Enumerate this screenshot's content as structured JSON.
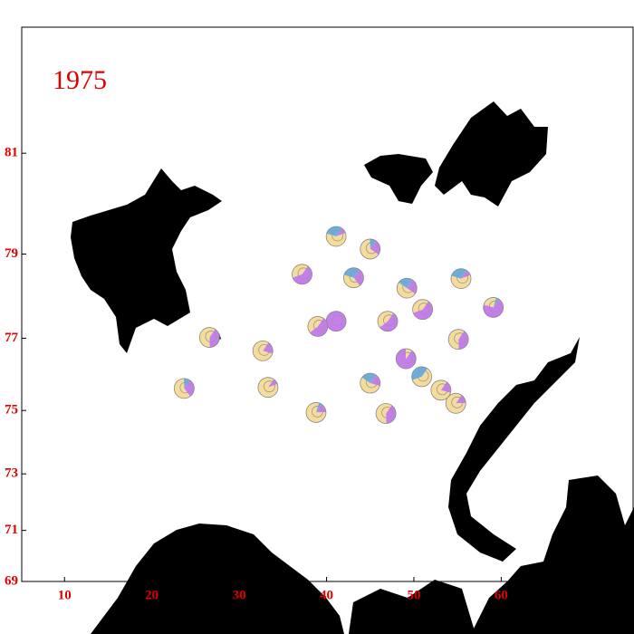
{
  "title": "1975",
  "xlim": [
    5.1,
    75.1
  ],
  "ylim": [
    69,
    83
  ],
  "xticks": [
    10,
    20,
    30,
    40,
    50,
    60
  ],
  "yticks": [
    69,
    71,
    73,
    75,
    77,
    79,
    81
  ],
  "colors": [
    "#c77cf0",
    "#f5dc9a",
    "#6aaee0"
  ],
  "pies": [
    {
      "lon": 41.1,
      "lat": 79.38,
      "values": [
        10,
        60,
        30
      ]
    },
    {
      "lon": 45.0,
      "lat": 79.11,
      "values": [
        25,
        65,
        10
      ]
    },
    {
      "lon": 37.2,
      "lat": 78.55,
      "values": [
        60,
        40,
        0
      ]
    },
    {
      "lon": 43.1,
      "lat": 78.47,
      "values": [
        30,
        40,
        30
      ]
    },
    {
      "lon": 49.2,
      "lat": 78.23,
      "values": [
        25,
        50,
        25
      ]
    },
    {
      "lon": 55.4,
      "lat": 78.45,
      "values": [
        10,
        60,
        30
      ]
    },
    {
      "lon": 59.1,
      "lat": 77.77,
      "values": [
        70,
        25,
        5
      ]
    },
    {
      "lon": 51.0,
      "lat": 77.72,
      "values": [
        60,
        40,
        0
      ]
    },
    {
      "lon": 41.1,
      "lat": 77.43,
      "values": [
        100,
        0,
        0
      ]
    },
    {
      "lon": 39.0,
      "lat": 77.3,
      "values": [
        55,
        45,
        0
      ]
    },
    {
      "lon": 47.0,
      "lat": 77.43,
      "values": [
        55,
        45,
        0
      ]
    },
    {
      "lon": 26.6,
      "lat": 77.02,
      "values": [
        40,
        60,
        0
      ]
    },
    {
      "lon": 55.1,
      "lat": 76.97,
      "values": [
        40,
        60,
        0
      ]
    },
    {
      "lon": 32.7,
      "lat": 76.67,
      "values": [
        20,
        80,
        0
      ]
    },
    {
      "lon": 49.1,
      "lat": 76.46,
      "values": [
        90,
        10,
        0
      ]
    },
    {
      "lon": 50.9,
      "lat": 75.97,
      "values": [
        0,
        60,
        40
      ]
    },
    {
      "lon": 45.0,
      "lat": 75.79,
      "values": [
        20,
        55,
        25
      ]
    },
    {
      "lon": 53.1,
      "lat": 75.59,
      "values": [
        20,
        80,
        0
      ]
    },
    {
      "lon": 23.7,
      "lat": 75.64,
      "values": [
        30,
        60,
        10
      ]
    },
    {
      "lon": 33.3,
      "lat": 75.67,
      "values": [
        10,
        90,
        0
      ]
    },
    {
      "lon": 54.8,
      "lat": 75.21,
      "values": [
        15,
        85,
        0
      ]
    },
    {
      "lon": 38.8,
      "lat": 74.94,
      "values": [
        15,
        80,
        5
      ]
    },
    {
      "lon": 46.8,
      "lat": 74.91,
      "values": [
        40,
        60,
        0
      ]
    }
  ]
}
